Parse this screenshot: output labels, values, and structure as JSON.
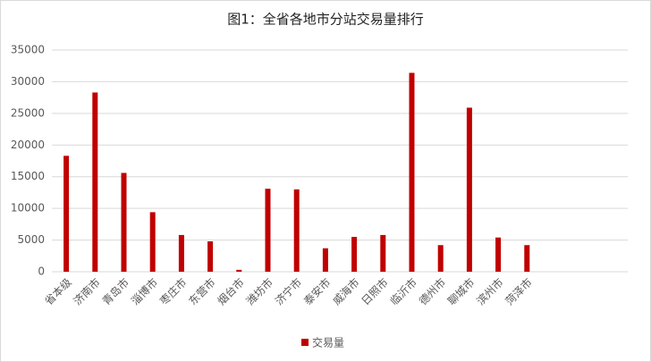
{
  "chart_data": {
    "type": "bar",
    "title": "图1：全省各地市分站交易量排行",
    "categories": [
      "省本级",
      "济南市",
      "青岛市",
      "淄博市",
      "枣庄市",
      "东营市",
      "烟台市",
      "潍坊市",
      "济宁市",
      "泰安市",
      "威海市",
      "日照市",
      "临沂市",
      "德州市",
      "聊城市",
      "滨州市",
      "菏泽市",
      null,
      null,
      null
    ],
    "series": [
      {
        "name": "交易量",
        "color": "#c00000",
        "values": [
          18300,
          28300,
          15600,
          9400,
          5800,
          4800,
          300,
          13100,
          13000,
          3700,
          5500,
          5800,
          31400,
          4200,
          25900,
          5400,
          4200,
          null,
          null,
          null
        ]
      }
    ],
    "ylim": [
      0,
      35000
    ],
    "yticks": [
      0,
      5000,
      10000,
      15000,
      20000,
      25000,
      30000,
      35000
    ],
    "grid": true,
    "legend": "bottom"
  }
}
